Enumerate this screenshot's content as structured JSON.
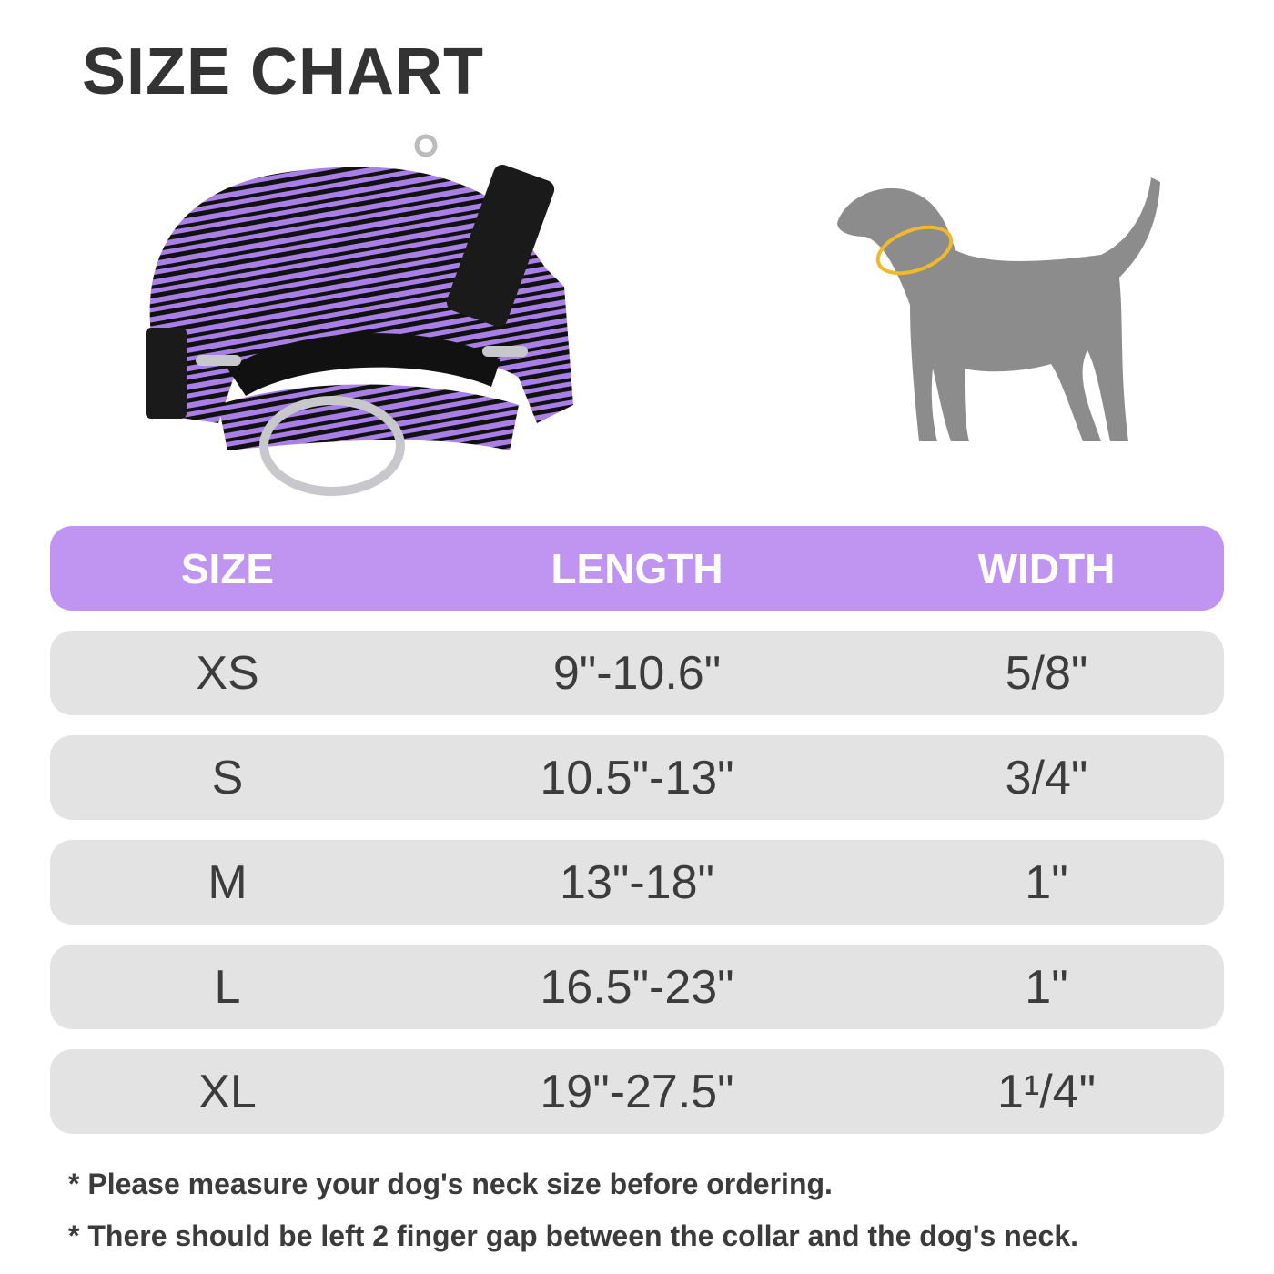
{
  "title": "SIZE CHART",
  "colors": {
    "header": "#c094f1",
    "row": "#e3e3e3",
    "text": "#3c3c3c",
    "collar_purple": "#a87fe6",
    "dog": "#8c8c8c",
    "neck_ring": "#f0b92a"
  },
  "images": {
    "collar": "purple-black-striped-martingale-collar",
    "dog": "dog-silhouette-with-neck-measure-icon"
  },
  "table": {
    "headers": [
      "SIZE",
      "LENGTH",
      "WIDTH"
    ],
    "rows": [
      {
        "size": "XS",
        "length": "9\"-10.6\"",
        "width": "5/8\""
      },
      {
        "size": "S",
        "length": "10.5\"-13\"",
        "width": "3/4\""
      },
      {
        "size": "M",
        "length": "13\"-18\"",
        "width": "1\""
      },
      {
        "size": "L",
        "length": "16.5\"-23\"",
        "width": "1\""
      },
      {
        "size": "XL",
        "length": "19\"-27.5\"",
        "width": "1¹/4\""
      }
    ]
  },
  "notes": [
    "* Please measure your dog's neck size before ordering.",
    "* There should be left 2 finger gap between the collar and the dog's neck."
  ]
}
